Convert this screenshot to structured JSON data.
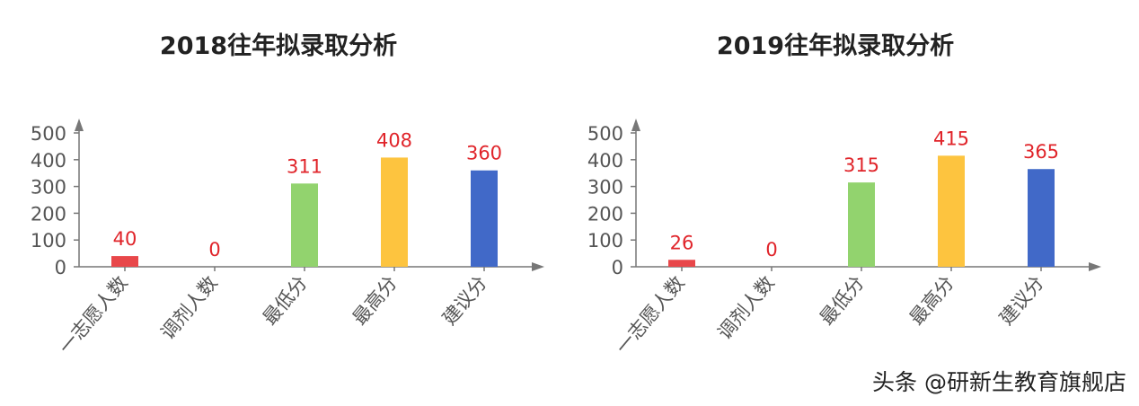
{
  "chart_data": [
    {
      "type": "bar",
      "title": "2018往年拟录取分析",
      "categories": [
        "一志愿人数",
        "调剂人数",
        "最低分",
        "最高分",
        "建议分"
      ],
      "values": [
        40,
        0,
        311,
        408,
        360
      ],
      "colors": [
        "#e8474a",
        "#e8474a",
        "#92d36e",
        "#fdc43f",
        "#4169c8"
      ],
      "ylim": [
        0,
        500
      ],
      "yticks": [
        0,
        100,
        200,
        300,
        400,
        500
      ],
      "grid": false,
      "data_label_color": "#e0242a"
    },
    {
      "type": "bar",
      "title": "2019往年拟录取分析",
      "categories": [
        "一志愿人数",
        "调剂人数",
        "最低分",
        "最高分",
        "建议分"
      ],
      "values": [
        26,
        0,
        315,
        415,
        365
      ],
      "colors": [
        "#e8474a",
        "#e8474a",
        "#92d36e",
        "#fdc43f",
        "#4169c8"
      ],
      "ylim": [
        0,
        500
      ],
      "yticks": [
        0,
        100,
        200,
        300,
        400,
        500
      ],
      "grid": false,
      "data_label_color": "#e0242a"
    }
  ],
  "watermark": "头条 @研新生教育旗舰店"
}
